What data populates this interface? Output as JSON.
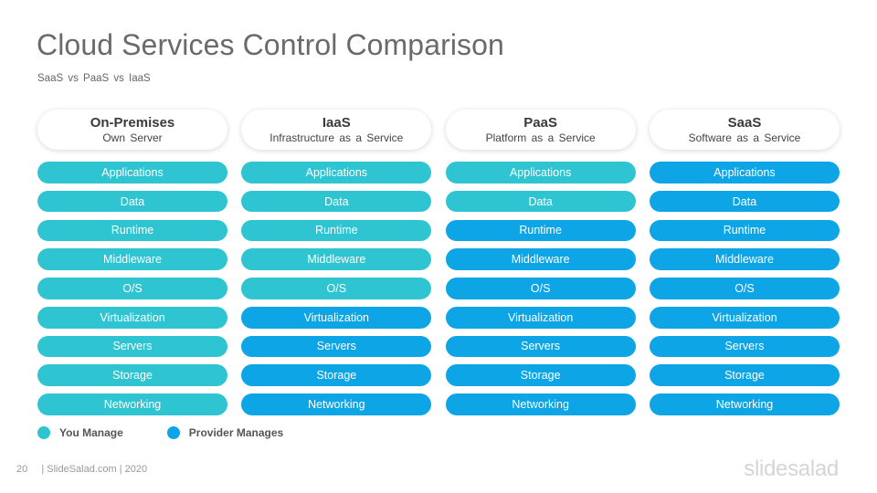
{
  "title": "Cloud Services Control Comparison",
  "subtitle": "SaaS vs PaaS vs IaaS",
  "colors": {
    "you_manage": "#2fc4d1",
    "provider_manages": "#0ea5e6"
  },
  "columns": [
    {
      "title": "On-Premises",
      "subtitle": "Own Server",
      "rows": [
        {
          "label": "Applications",
          "owner": "you"
        },
        {
          "label": "Data",
          "owner": "you"
        },
        {
          "label": "Runtime",
          "owner": "you"
        },
        {
          "label": "Middleware",
          "owner": "you"
        },
        {
          "label": "O/S",
          "owner": "you"
        },
        {
          "label": "Virtualization",
          "owner": "you"
        },
        {
          "label": "Servers",
          "owner": "you"
        },
        {
          "label": "Storage",
          "owner": "you"
        },
        {
          "label": "Networking",
          "owner": "you"
        }
      ]
    },
    {
      "title": "IaaS",
      "subtitle": "Infrastructure as a Service",
      "rows": [
        {
          "label": "Applications",
          "owner": "you"
        },
        {
          "label": "Data",
          "owner": "you"
        },
        {
          "label": "Runtime",
          "owner": "you"
        },
        {
          "label": "Middleware",
          "owner": "you"
        },
        {
          "label": "O/S",
          "owner": "you"
        },
        {
          "label": "Virtualization",
          "owner": "provider"
        },
        {
          "label": "Servers",
          "owner": "provider"
        },
        {
          "label": "Storage",
          "owner": "provider"
        },
        {
          "label": "Networking",
          "owner": "provider"
        }
      ]
    },
    {
      "title": "PaaS",
      "subtitle": "Platform as a Service",
      "rows": [
        {
          "label": "Applications",
          "owner": "you"
        },
        {
          "label": "Data",
          "owner": "you"
        },
        {
          "label": "Runtime",
          "owner": "provider"
        },
        {
          "label": "Middleware",
          "owner": "provider"
        },
        {
          "label": "O/S",
          "owner": "provider"
        },
        {
          "label": "Virtualization",
          "owner": "provider"
        },
        {
          "label": "Servers",
          "owner": "provider"
        },
        {
          "label": "Storage",
          "owner": "provider"
        },
        {
          "label": "Networking",
          "owner": "provider"
        }
      ]
    },
    {
      "title": "SaaS",
      "subtitle": "Software as a Service",
      "rows": [
        {
          "label": "Applications",
          "owner": "provider"
        },
        {
          "label": "Data",
          "owner": "provider"
        },
        {
          "label": "Runtime",
          "owner": "provider"
        },
        {
          "label": "Middleware",
          "owner": "provider"
        },
        {
          "label": "O/S",
          "owner": "provider"
        },
        {
          "label": "Virtualization",
          "owner": "provider"
        },
        {
          "label": "Servers",
          "owner": "provider"
        },
        {
          "label": "Storage",
          "owner": "provider"
        },
        {
          "label": "Networking",
          "owner": "provider"
        }
      ]
    }
  ],
  "legend": {
    "you_manage": "You Manage",
    "provider_manages": "Provider Manages"
  },
  "footer": {
    "page_number": "20",
    "credit": "| SlideSalad.com | 2020"
  },
  "logo": "slidesalad"
}
